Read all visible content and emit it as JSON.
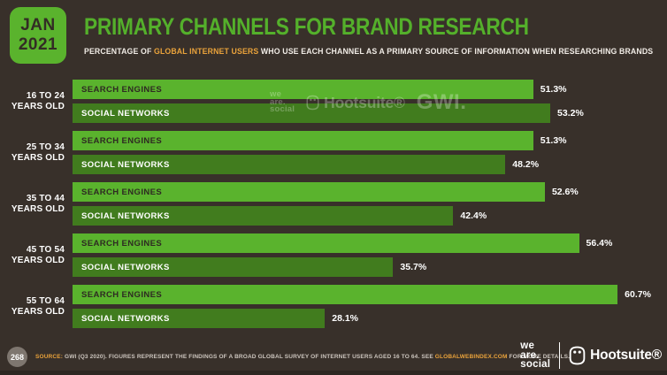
{
  "header": {
    "badge_month": "JAN",
    "badge_year": "2021",
    "title": "PRIMARY CHANNELS FOR BRAND RESEARCH",
    "subtitle_prefix": "PERCENTAGE OF ",
    "subtitle_highlight": "GLOBAL INTERNET USERS",
    "subtitle_suffix": " WHO USE EACH CHANNEL AS A PRIMARY SOURCE OF INFORMATION WHEN RESEARCHING BRANDS"
  },
  "chart_data": {
    "type": "bar",
    "orientation": "horizontal",
    "title": "PRIMARY CHANNELS FOR BRAND RESEARCH",
    "categories": [
      "16 TO 24",
      "25 TO 34",
      "35 TO 44",
      "45 TO 54",
      "55 TO 64"
    ],
    "category_suffix": "YEARS OLD",
    "series": [
      {
        "name": "SEARCH ENGINES",
        "values": [
          51.3,
          51.3,
          52.6,
          56.4,
          60.7
        ],
        "color": "#5ab32d",
        "label_color": "#2e2a22"
      },
      {
        "name": "SOCIAL NETWORKS",
        "values": [
          53.2,
          48.2,
          42.4,
          35.7,
          28.1
        ],
        "color": "#417c1e",
        "label_color": "#ffffff"
      }
    ],
    "value_suffix": "%",
    "xlim": [
      0,
      66.2
    ],
    "grid": false,
    "legend": "labels-inside-bars"
  },
  "watermark": {
    "we": "we",
    "are": "are.",
    "social": "social",
    "hootsuite": "Hootsuite®",
    "gwi": "GWI."
  },
  "footer": {
    "page_number": "268",
    "source_label": "SOURCE:",
    "source_pre": " GWI (Q3 2020). FIGURES REPRESENT THE FINDINGS OF A BROAD GLOBAL SURVEY OF INTERNET USERS AGED 16 TO 64. SEE ",
    "source_link": "GLOBALWEBINDEX.COM",
    "source_post": " FOR MORE DETAILS.",
    "wearesocial": {
      "we": "we",
      "are": "are.",
      "social": "social"
    },
    "hootsuite": "Hootsuite®"
  },
  "colors": {
    "background": "#38302a",
    "accent_green": "#54b02b",
    "bar_light_green": "#5ab32d",
    "bar_dark_green": "#417c1e",
    "accent_orange": "#e9a23b"
  }
}
